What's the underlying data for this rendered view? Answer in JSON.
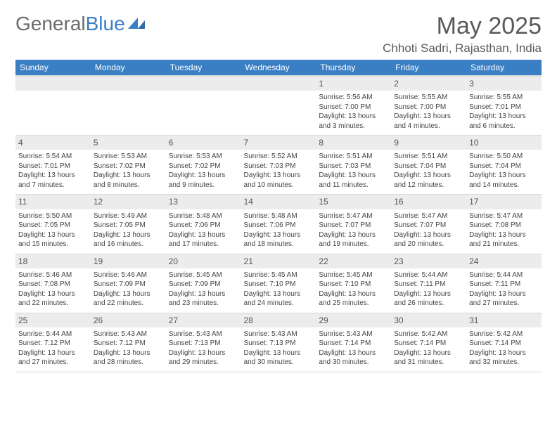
{
  "brand": {
    "part1": "General",
    "part2": "Blue"
  },
  "title": "May 2025",
  "subtitle": "Chhoti Sadri, Rajasthan, India",
  "colors": {
    "header_bg": "#3a7fc4",
    "header_text": "#ffffff",
    "daynum_bg": "#ececec",
    "text": "#444444",
    "page_bg": "#ffffff"
  },
  "typography": {
    "title_fontsize": 34,
    "subtitle_fontsize": 17,
    "header_fontsize": 12,
    "cell_fontsize": 10
  },
  "day_headers": [
    "Sunday",
    "Monday",
    "Tuesday",
    "Wednesday",
    "Thursday",
    "Friday",
    "Saturday"
  ],
  "weeks": [
    [
      {
        "empty": true
      },
      {
        "empty": true
      },
      {
        "empty": true
      },
      {
        "empty": true
      },
      {
        "day": 1,
        "sunrise": "5:56 AM",
        "sunset": "7:00 PM",
        "daylight": "13 hours and 3 minutes."
      },
      {
        "day": 2,
        "sunrise": "5:55 AM",
        "sunset": "7:00 PM",
        "daylight": "13 hours and 4 minutes."
      },
      {
        "day": 3,
        "sunrise": "5:55 AM",
        "sunset": "7:01 PM",
        "daylight": "13 hours and 6 minutes."
      }
    ],
    [
      {
        "day": 4,
        "sunrise": "5:54 AM",
        "sunset": "7:01 PM",
        "daylight": "13 hours and 7 minutes."
      },
      {
        "day": 5,
        "sunrise": "5:53 AM",
        "sunset": "7:02 PM",
        "daylight": "13 hours and 8 minutes."
      },
      {
        "day": 6,
        "sunrise": "5:53 AM",
        "sunset": "7:02 PM",
        "daylight": "13 hours and 9 minutes."
      },
      {
        "day": 7,
        "sunrise": "5:52 AM",
        "sunset": "7:03 PM",
        "daylight": "13 hours and 10 minutes."
      },
      {
        "day": 8,
        "sunrise": "5:51 AM",
        "sunset": "7:03 PM",
        "daylight": "13 hours and 11 minutes."
      },
      {
        "day": 9,
        "sunrise": "5:51 AM",
        "sunset": "7:04 PM",
        "daylight": "13 hours and 12 minutes."
      },
      {
        "day": 10,
        "sunrise": "5:50 AM",
        "sunset": "7:04 PM",
        "daylight": "13 hours and 14 minutes."
      }
    ],
    [
      {
        "day": 11,
        "sunrise": "5:50 AM",
        "sunset": "7:05 PM",
        "daylight": "13 hours and 15 minutes."
      },
      {
        "day": 12,
        "sunrise": "5:49 AM",
        "sunset": "7:05 PM",
        "daylight": "13 hours and 16 minutes."
      },
      {
        "day": 13,
        "sunrise": "5:48 AM",
        "sunset": "7:06 PM",
        "daylight": "13 hours and 17 minutes."
      },
      {
        "day": 14,
        "sunrise": "5:48 AM",
        "sunset": "7:06 PM",
        "daylight": "13 hours and 18 minutes."
      },
      {
        "day": 15,
        "sunrise": "5:47 AM",
        "sunset": "7:07 PM",
        "daylight": "13 hours and 19 minutes."
      },
      {
        "day": 16,
        "sunrise": "5:47 AM",
        "sunset": "7:07 PM",
        "daylight": "13 hours and 20 minutes."
      },
      {
        "day": 17,
        "sunrise": "5:47 AM",
        "sunset": "7:08 PM",
        "daylight": "13 hours and 21 minutes."
      }
    ],
    [
      {
        "day": 18,
        "sunrise": "5:46 AM",
        "sunset": "7:08 PM",
        "daylight": "13 hours and 22 minutes."
      },
      {
        "day": 19,
        "sunrise": "5:46 AM",
        "sunset": "7:09 PM",
        "daylight": "13 hours and 22 minutes."
      },
      {
        "day": 20,
        "sunrise": "5:45 AM",
        "sunset": "7:09 PM",
        "daylight": "13 hours and 23 minutes."
      },
      {
        "day": 21,
        "sunrise": "5:45 AM",
        "sunset": "7:10 PM",
        "daylight": "13 hours and 24 minutes."
      },
      {
        "day": 22,
        "sunrise": "5:45 AM",
        "sunset": "7:10 PM",
        "daylight": "13 hours and 25 minutes."
      },
      {
        "day": 23,
        "sunrise": "5:44 AM",
        "sunset": "7:11 PM",
        "daylight": "13 hours and 26 minutes."
      },
      {
        "day": 24,
        "sunrise": "5:44 AM",
        "sunset": "7:11 PM",
        "daylight": "13 hours and 27 minutes."
      }
    ],
    [
      {
        "day": 25,
        "sunrise": "5:44 AM",
        "sunset": "7:12 PM",
        "daylight": "13 hours and 27 minutes."
      },
      {
        "day": 26,
        "sunrise": "5:43 AM",
        "sunset": "7:12 PM",
        "daylight": "13 hours and 28 minutes."
      },
      {
        "day": 27,
        "sunrise": "5:43 AM",
        "sunset": "7:13 PM",
        "daylight": "13 hours and 29 minutes."
      },
      {
        "day": 28,
        "sunrise": "5:43 AM",
        "sunset": "7:13 PM",
        "daylight": "13 hours and 30 minutes."
      },
      {
        "day": 29,
        "sunrise": "5:43 AM",
        "sunset": "7:14 PM",
        "daylight": "13 hours and 30 minutes."
      },
      {
        "day": 30,
        "sunrise": "5:42 AM",
        "sunset": "7:14 PM",
        "daylight": "13 hours and 31 minutes."
      },
      {
        "day": 31,
        "sunrise": "5:42 AM",
        "sunset": "7:14 PM",
        "daylight": "13 hours and 32 minutes."
      }
    ]
  ],
  "labels": {
    "sunrise": "Sunrise:",
    "sunset": "Sunset:",
    "daylight": "Daylight:"
  }
}
